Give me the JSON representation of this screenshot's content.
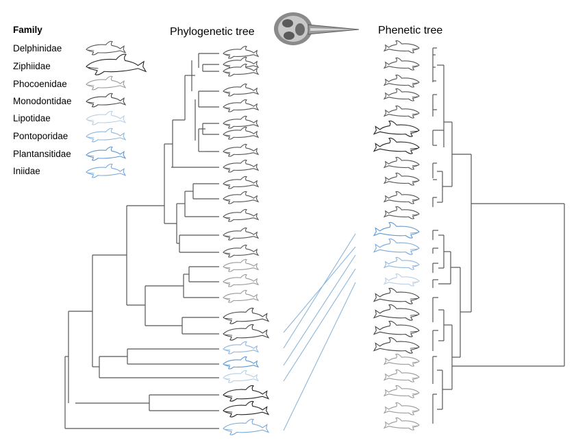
{
  "titles": {
    "phylogenetic": "Phylogenetic tree",
    "phenetic": "Phenetic tree"
  },
  "legend": {
    "title": "Family",
    "families": [
      {
        "name": "Delphinidae",
        "color": "#555555"
      },
      {
        "name": "Ziphiidae",
        "color": "#222222"
      },
      {
        "name": "Phocoenidae",
        "color": "#9a9a9a"
      },
      {
        "name": "Monodontidae",
        "color": "#444444"
      },
      {
        "name": "Lipotidae",
        "color": "#b9cfe4"
      },
      {
        "name": "Pontoporidae",
        "color": "#8fb6dc"
      },
      {
        "name": "Plantansitidae",
        "color": "#5f98d0"
      },
      {
        "name": "Iniidae",
        "color": "#7aa9d9"
      }
    ]
  },
  "phylogenetic_tips": [
    0,
    0,
    0,
    0,
    0,
    0,
    0,
    0,
    0,
    0,
    0,
    0,
    0,
    0,
    2,
    2,
    2,
    3,
    3,
    5,
    6,
    4,
    1,
    1,
    7
  ],
  "phenetic_tips": [
    0,
    0,
    0,
    0,
    0,
    1,
    1,
    0,
    0,
    0,
    0,
    6,
    7,
    5,
    4,
    3,
    3,
    3,
    3,
    2,
    2,
    2,
    2,
    2,
    2
  ],
  "connector_color": "#8ab6dc",
  "skull_icon": "skull-image"
}
